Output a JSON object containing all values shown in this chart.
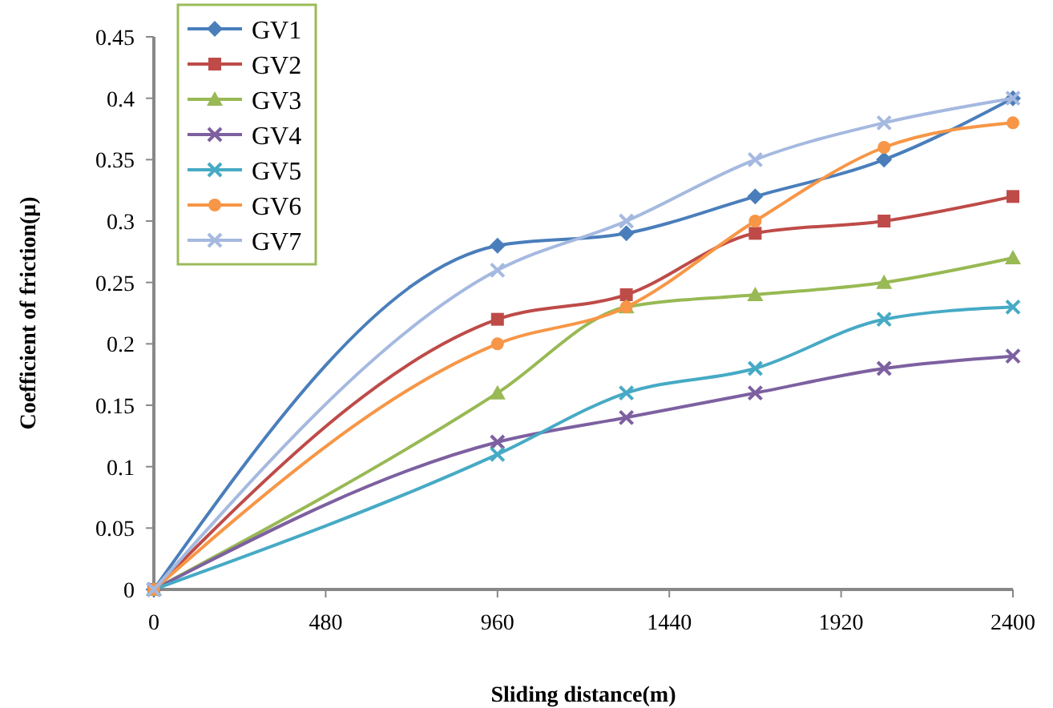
{
  "chart_data": {
    "type": "line",
    "xlabel": "Sliding distance(m)",
    "ylabel": "Coefficient of friction(μ)",
    "x": [
      0,
      960,
      1320,
      1680,
      2040,
      2400
    ],
    "xlim": [
      0,
      2400
    ],
    "xticks": [
      0,
      480,
      960,
      1440,
      1920,
      2400
    ],
    "ylim": [
      0,
      0.45
    ],
    "yticks": [
      0,
      0.05,
      0.1,
      0.15,
      0.2,
      0.25,
      0.3,
      0.35,
      0.4,
      0.45
    ],
    "grid": false,
    "legend": "top left",
    "series": [
      {
        "name": "GV1",
        "color": "#4a7ebb",
        "marker": "diamond",
        "values": [
          0,
          0.28,
          0.29,
          0.32,
          0.35,
          0.4
        ]
      },
      {
        "name": "GV2",
        "color": "#be4b48",
        "marker": "square",
        "values": [
          0,
          0.22,
          0.24,
          0.29,
          0.3,
          0.32
        ]
      },
      {
        "name": "GV3",
        "color": "#98b954",
        "marker": "triangle",
        "values": [
          0,
          0.16,
          0.23,
          0.24,
          0.25,
          0.27
        ]
      },
      {
        "name": "GV4",
        "color": "#7d60a0",
        "marker": "cross",
        "values": [
          0,
          0.12,
          0.14,
          0.16,
          0.18,
          0.19
        ]
      },
      {
        "name": "GV5",
        "color": "#46aac5",
        "marker": "cross",
        "values": [
          0,
          0.11,
          0.16,
          0.18,
          0.22,
          0.23
        ]
      },
      {
        "name": "GV6",
        "color": "#f79646",
        "marker": "circle",
        "values": [
          0,
          0.2,
          0.23,
          0.3,
          0.36,
          0.38
        ]
      },
      {
        "name": "GV7",
        "color": "#a5b9e0",
        "marker": "cross",
        "values": [
          0,
          0.26,
          0.3,
          0.35,
          0.38,
          0.4
        ]
      }
    ]
  }
}
